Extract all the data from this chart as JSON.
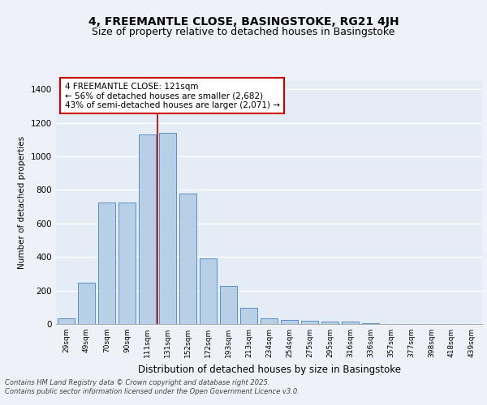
{
  "title": "4, FREEMANTLE CLOSE, BASINGSTOKE, RG21 4JH",
  "subtitle": "Size of property relative to detached houses in Basingstoke",
  "xlabel": "Distribution of detached houses by size in Basingstoke",
  "ylabel": "Number of detached properties",
  "categories": [
    "29sqm",
    "49sqm",
    "70sqm",
    "90sqm",
    "111sqm",
    "131sqm",
    "152sqm",
    "172sqm",
    "193sqm",
    "213sqm",
    "234sqm",
    "254sqm",
    "275sqm",
    "295sqm",
    "316sqm",
    "336sqm",
    "357sqm",
    "377sqm",
    "398sqm",
    "418sqm",
    "439sqm"
  ],
  "values": [
    35,
    248,
    725,
    725,
    1130,
    1140,
    780,
    390,
    225,
    95,
    35,
    25,
    18,
    15,
    13,
    7,
    0,
    0,
    0,
    0,
    0
  ],
  "bar_color": "#b8cfe8",
  "bar_edge_color": "#5a8fc4",
  "vline_x": 4.5,
  "vline_color": "#aa0000",
  "annotation_text": "4 FREEMANTLE CLOSE: 121sqm\n← 56% of detached houses are smaller (2,682)\n43% of semi-detached houses are larger (2,071) →",
  "annotation_box_color": "#ffffff",
  "annotation_box_edge_color": "#cc0000",
  "ylim": [
    0,
    1450
  ],
  "yticks": [
    0,
    200,
    400,
    600,
    800,
    1000,
    1200,
    1400
  ],
  "bg_color": "#eef2f8",
  "plot_bg_color": "#e4ecf6",
  "footer_text": "Contains HM Land Registry data © Crown copyright and database right 2025.\nContains public sector information licensed under the Open Government Licence v3.0.",
  "title_fontsize": 10,
  "subtitle_fontsize": 9,
  "ann_fontsize": 7.5,
  "footer_fontsize": 6.0
}
